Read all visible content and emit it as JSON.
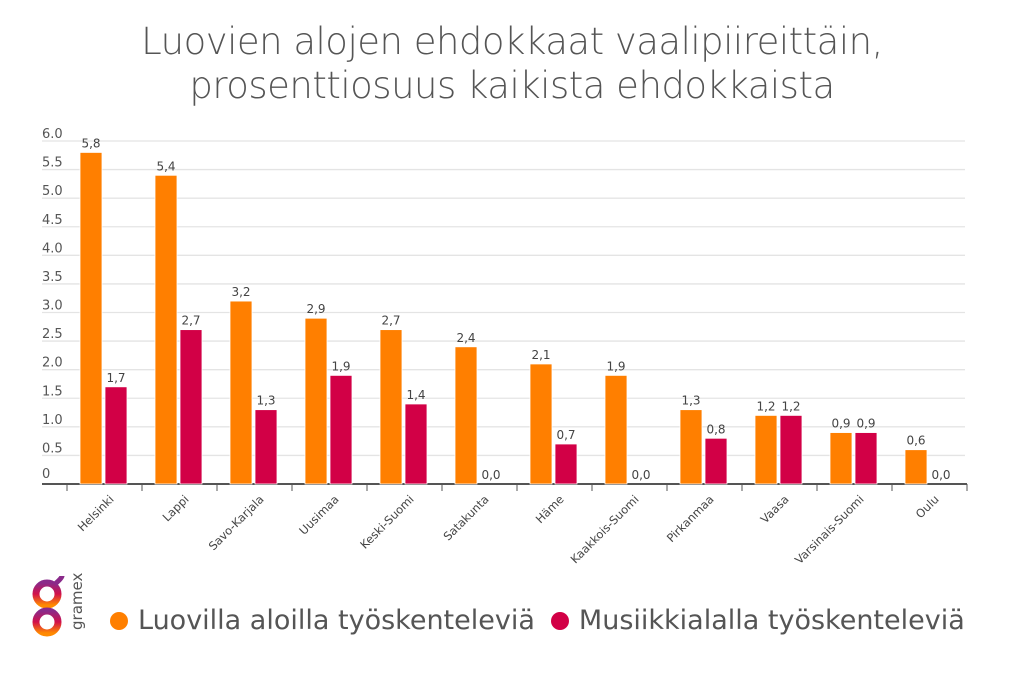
{
  "chart_data": {
    "type": "bar",
    "title": "Luovien alojen ehdokkaat vaalipiireittäin, prosenttiosuus kaikista ehdokkaista",
    "title_lines": [
      "Luovien alojen ehdokkaat vaalipiireittäin,",
      "prosenttiosuus kaikista ehdokkaista"
    ],
    "categories": [
      "Helsinki",
      "Lappi",
      "Savo-Karjala",
      "Uusimaa",
      "Keski-Suomi",
      "Satakunta",
      "Häme",
      "Kaakkois-Suomi",
      "Pirkanmaa",
      "Vaasa",
      "Varsinais-Suomi",
      "Oulu"
    ],
    "series": [
      {
        "name": "Luovilla aloilla työskenteleviä",
        "color": "#ff7f00",
        "values": [
          5.8,
          5.4,
          3.2,
          2.9,
          2.7,
          2.4,
          2.1,
          1.9,
          1.3,
          1.2,
          0.9,
          0.6
        ],
        "labels": [
          "5,8",
          "5,4",
          "3,2",
          "2,9",
          "2,7",
          "2,4",
          "2,1",
          "1,9",
          "1,3",
          "1,2",
          "0,9",
          "0,6"
        ]
      },
      {
        "name": "Musiikkialalla työskenteleviä",
        "color": "#d20046",
        "values": [
          1.7,
          2.7,
          1.3,
          1.9,
          1.4,
          0.0,
          0.7,
          0.0,
          0.8,
          1.2,
          0.9,
          0.0
        ],
        "labels": [
          "1,7",
          "2,7",
          "1,3",
          "1,9",
          "1,4",
          "0,0",
          "0,7",
          "0,0",
          "0,8",
          "1,2",
          "0,9",
          "0,0"
        ]
      }
    ],
    "yticks": [
      "0",
      "0.5",
      "1.0",
      "1.5",
      "2.0",
      "2.5",
      "3.0",
      "3.5",
      "4.0",
      "4.5",
      "5.0",
      "5.5",
      "6.0"
    ],
    "ylim": [
      0,
      6
    ],
    "grid": true,
    "legend": "bottom",
    "xlabel": "",
    "ylabel": ""
  },
  "logo": {
    "text": "gramex"
  }
}
